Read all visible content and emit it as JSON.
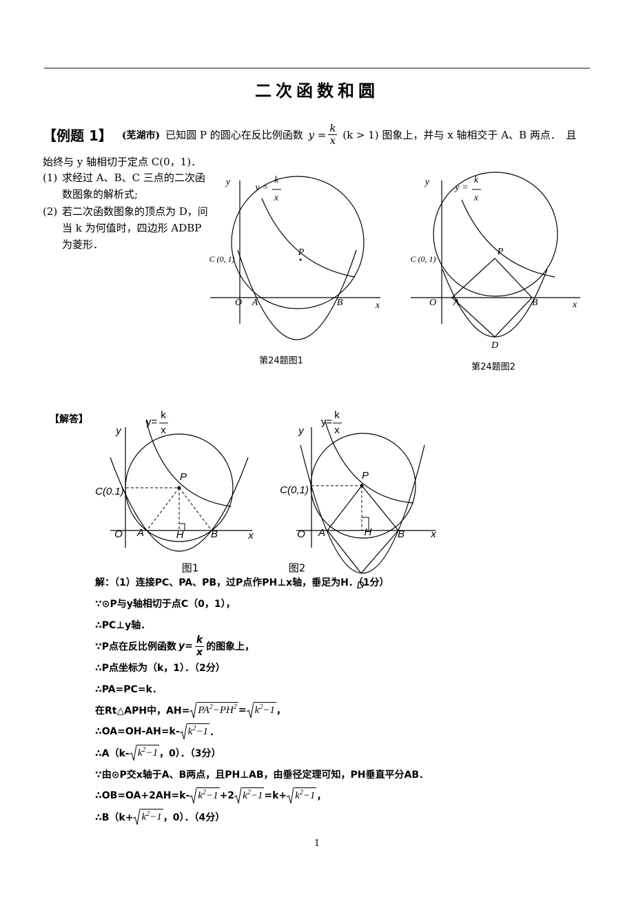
{
  "header": {
    "title": "二次函数和圆"
  },
  "problem": {
    "label": "【例题 1】",
    "source": "(芜湖市)",
    "line1": [
      "已知圆 P 的圆心在反比例函数 ",
      {
        "lhs": "y =",
        "num": "k",
        "den": "x"
      },
      " (k > 1) 图象上，并与 x 轴相交于 A、B 两点．　且"
    ],
    "line2": "始终与 y 轴相切于定点 C(0，1)．",
    "items": [
      {
        "no": "(1)",
        "text": "求经过 A、B、C 三点的二次函数图象的解析式;"
      },
      {
        "no": "(2)",
        "text": "若二次函数图象的顶点为 D，问当 k 为何值时，四边形 ADBP 为菱形．"
      }
    ]
  },
  "figures": [
    {
      "y": "y",
      "x": "x",
      "O": "O",
      "A": "A",
      "B": "B",
      "C": "C (0, 1)",
      "P": "P",
      "func": {
        "lhs": "y =",
        "num": "k",
        "den": "x"
      },
      "caption": "第24题图1"
    },
    {
      "y": "y",
      "x": "x",
      "O": "O",
      "A": "A",
      "B": "B",
      "C": "C (0, 1)",
      "P": "P",
      "D": "D",
      "func": {
        "lhs": "y =",
        "num": "k",
        "den": "x"
      },
      "caption": "第24题图2"
    }
  ],
  "solution": {
    "heading": "【解答】",
    "figures": [
      {
        "y": "y",
        "x": "x",
        "O": "O",
        "A": "A",
        "B": "B",
        "H": "H",
        "C": "C(0.1)",
        "P": "P",
        "func": {
          "lhs": "y=",
          "num": "k",
          "den": "x"
        },
        "caption": "图1"
      },
      {
        "y": "y",
        "x": "x",
        "O": "O",
        "A": "A",
        "B": "B",
        "H": "H",
        "C": "C(0,1)",
        "P": "P",
        "D": "D",
        "func": {
          "lhs": "y=",
          "num": "k",
          "den": "x"
        },
        "caption": "图2"
      }
    ],
    "lines": [
      [
        "解：（1）连接PC、PA、PB，过P点作PH⊥x轴，垂足为H．（1分）"
      ],
      [
        "∵⊙P与y轴相切于点C（0，1），"
      ],
      [
        "∴PC⊥y轴．"
      ],
      [
        "∵P点在反比例函数",
        {
          "lhs": "y=",
          "num": "k",
          "den": "x"
        },
        "的图象上，"
      ],
      [
        "∴P点坐标为（k，1）．（2分）"
      ],
      [
        "∴PA=PC=k．"
      ],
      [
        "在Rt△APH中，AH=",
        {
          "sqrt": [
            "PA",
            "2",
            "−PH",
            "2"
          ]
        },
        "=",
        {
          "sqrt": [
            "k",
            "2",
            "−1"
          ]
        },
        "，"
      ],
      [
        "∴OA=OH-AH=k-",
        {
          "sqrt": [
            "k",
            "2",
            "−1"
          ]
        },
        "．"
      ],
      [
        "∴A（k-",
        {
          "sqrt": [
            "k",
            "2",
            "−1"
          ]
        },
        "，0）．（3分）"
      ],
      [
        "∵由⊙P交x轴于A、B两点，且PH⊥AB，由垂径定理可知，PH垂直平分AB．"
      ],
      [
        "∴OB=OA+2AH=k-",
        {
          "sqrt": [
            "k",
            "2",
            "−1"
          ]
        },
        "+2",
        {
          "sqrt": [
            "k",
            "2",
            "−1"
          ]
        },
        "=k+",
        {
          "sqrt": [
            "k",
            "2",
            "−1"
          ]
        },
        "，"
      ],
      [
        "∴B（k+",
        {
          "sqrt": [
            "k",
            "2",
            "−1"
          ]
        },
        "，0）．（4分）"
      ]
    ]
  },
  "page_number": "1"
}
